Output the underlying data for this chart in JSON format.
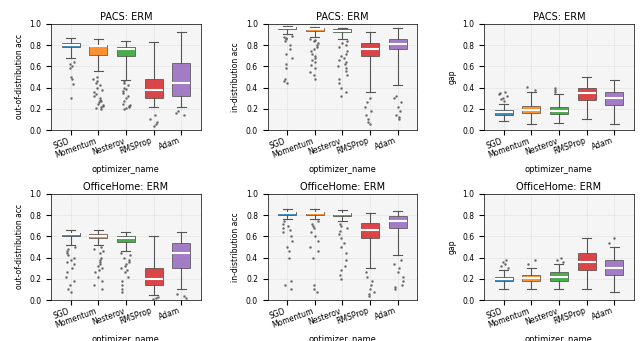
{
  "optimizers": [
    "SGD",
    "Momentum",
    "Nesterov",
    "RMSProp",
    "Adam"
  ],
  "colors": [
    "#1f77b4",
    "#ff7f0e",
    "#2ca02c",
    "#d62728",
    "#9467bd"
  ],
  "titles": {
    "row0": [
      "PACS: ERM",
      "PACS: ERM",
      "PACS: ERM"
    ],
    "row1": [
      "OfficeHome: ERM",
      "OfficeHome: ERM",
      "OfficeHome: ERM"
    ]
  },
  "ylabels": {
    "row0": [
      "out-of-distribution acc",
      "in-distribution acc",
      "gap"
    ],
    "row1": [
      "out-of-distribution acc",
      "in-distribution acc",
      "gap"
    ]
  },
  "pacs_ood": {
    "SGD": {
      "whislo": 0.68,
      "q1": 0.78,
      "med": 0.8,
      "q3": 0.82,
      "whishi": 0.87,
      "fliers": [
        0.3,
        0.43,
        0.48,
        0.5,
        0.58,
        0.6,
        0.62,
        0.64
      ]
    },
    "Momentum": {
      "whislo": 0.56,
      "q1": 0.71,
      "med": 0.79,
      "q3": 0.8,
      "whishi": 0.86,
      "fliers": [
        0.2,
        0.21,
        0.22,
        0.23,
        0.24,
        0.25,
        0.26,
        0.27,
        0.28,
        0.3,
        0.32,
        0.34,
        0.36,
        0.38,
        0.4,
        0.42,
        0.44,
        0.46,
        0.48,
        0.5
      ]
    },
    "Nesterov": {
      "whislo": 0.47,
      "q1": 0.7,
      "med": 0.76,
      "q3": 0.78,
      "whishi": 0.84,
      "fliers": [
        0.2,
        0.21,
        0.22,
        0.23,
        0.24,
        0.25,
        0.27,
        0.3,
        0.32,
        0.35,
        0.37,
        0.39,
        0.4,
        0.42,
        0.44,
        0.46
      ]
    },
    "RMSProp": {
      "whislo": 0.22,
      "q1": 0.3,
      "med": 0.38,
      "q3": 0.48,
      "whishi": 0.83,
      "fliers": [
        0.04,
        0.06,
        0.08,
        0.1,
        0.14
      ]
    },
    "Adam": {
      "whislo": 0.22,
      "q1": 0.32,
      "med": 0.44,
      "q3": 0.63,
      "whishi": 0.92,
      "fliers": [
        0.14,
        0.16,
        0.18
      ]
    }
  },
  "pacs_ind": {
    "SGD": {
      "whislo": 0.9,
      "q1": 0.95,
      "med": 0.96,
      "q3": 0.97,
      "whishi": 0.98,
      "fliers": [
        0.44,
        0.46,
        0.48,
        0.58,
        0.62,
        0.68,
        0.72,
        0.76,
        0.8,
        0.84,
        0.86,
        0.87,
        0.88,
        0.89
      ]
    },
    "Momentum": {
      "whislo": 0.88,
      "q1": 0.93,
      "med": 0.95,
      "q3": 0.96,
      "whishi": 0.97,
      "fliers": [
        0.48,
        0.52,
        0.55,
        0.58,
        0.61,
        0.64,
        0.66,
        0.68,
        0.7,
        0.72,
        0.74,
        0.76,
        0.78,
        0.8,
        0.82,
        0.84,
        0.85,
        0.86
      ]
    },
    "Nesterov": {
      "whislo": 0.86,
      "q1": 0.92,
      "med": 0.93,
      "q3": 0.95,
      "whishi": 0.96,
      "fliers": [
        0.32,
        0.36,
        0.4,
        0.44,
        0.48,
        0.52,
        0.56,
        0.58,
        0.6,
        0.62,
        0.64,
        0.66,
        0.68,
        0.7,
        0.72,
        0.74,
        0.78,
        0.8,
        0.82,
        0.84
      ]
    },
    "RMSProp": {
      "whislo": 0.36,
      "q1": 0.7,
      "med": 0.76,
      "q3": 0.82,
      "whishi": 0.92,
      "fliers": [
        0.06,
        0.08,
        0.1,
        0.14,
        0.18,
        0.22,
        0.26,
        0.3
      ]
    },
    "Adam": {
      "whislo": 0.42,
      "q1": 0.76,
      "med": 0.81,
      "q3": 0.86,
      "whishi": 0.96,
      "fliers": [
        0.1,
        0.12,
        0.14,
        0.18,
        0.22,
        0.26,
        0.3,
        0.32
      ]
    }
  },
  "pacs_gap": {
    "SGD": {
      "whislo": 0.09,
      "q1": 0.14,
      "med": 0.17,
      "q3": 0.19,
      "whishi": 0.25,
      "fliers": [
        0.27,
        0.29,
        0.3,
        0.32,
        0.34,
        0.35,
        0.36
      ]
    },
    "Momentum": {
      "whislo": 0.06,
      "q1": 0.16,
      "med": 0.19,
      "q3": 0.23,
      "whishi": 0.36,
      "fliers": [
        0.38,
        0.41
      ]
    },
    "Nesterov": {
      "whislo": 0.07,
      "q1": 0.15,
      "med": 0.18,
      "q3": 0.22,
      "whishi": 0.34,
      "fliers": [
        0.36,
        0.38,
        0.4
      ]
    },
    "RMSProp": {
      "whislo": 0.1,
      "q1": 0.28,
      "med": 0.35,
      "q3": 0.4,
      "whishi": 0.5,
      "fliers": []
    },
    "Adam": {
      "whislo": 0.06,
      "q1": 0.24,
      "med": 0.3,
      "q3": 0.36,
      "whishi": 0.47,
      "fliers": []
    }
  },
  "oh_ood": {
    "SGD": {
      "whislo": 0.52,
      "q1": 0.6,
      "med": 0.62,
      "q3": 0.63,
      "whishi": 0.66,
      "fliers": [
        0.08,
        0.1,
        0.14,
        0.18,
        0.22,
        0.26,
        0.3,
        0.34,
        0.36,
        0.38,
        0.4,
        0.42,
        0.44,
        0.46,
        0.48,
        0.5
      ]
    },
    "Momentum": {
      "whislo": 0.52,
      "q1": 0.58,
      "med": 0.6,
      "q3": 0.62,
      "whishi": 0.66,
      "fliers": [
        0.1,
        0.14,
        0.18,
        0.22,
        0.26,
        0.28,
        0.3,
        0.32,
        0.34,
        0.36,
        0.38,
        0.4,
        0.44,
        0.46,
        0.48,
        0.5
      ]
    },
    "Nesterov": {
      "whislo": 0.46,
      "q1": 0.55,
      "med": 0.58,
      "q3": 0.6,
      "whishi": 0.64,
      "fliers": [
        0.08,
        0.1,
        0.14,
        0.18,
        0.22,
        0.26,
        0.28,
        0.3,
        0.32,
        0.34,
        0.36,
        0.38,
        0.4,
        0.42,
        0.44
      ]
    },
    "RMSProp": {
      "whislo": 0.05,
      "q1": 0.14,
      "med": 0.2,
      "q3": 0.3,
      "whishi": 0.6,
      "fliers": [
        0.01,
        0.02,
        0.03
      ]
    },
    "Adam": {
      "whislo": 0.1,
      "q1": 0.3,
      "med": 0.44,
      "q3": 0.54,
      "whishi": 0.64,
      "fliers": [
        0.02,
        0.04,
        0.06
      ]
    }
  },
  "oh_ind": {
    "SGD": {
      "whislo": 0.76,
      "q1": 0.8,
      "med": 0.82,
      "q3": 0.83,
      "whishi": 0.86,
      "fliers": [
        0.1,
        0.14,
        0.18,
        0.4,
        0.46,
        0.5,
        0.56,
        0.6,
        0.64,
        0.66,
        0.68,
        0.7,
        0.72,
        0.74
      ]
    },
    "Momentum": {
      "whislo": 0.76,
      "q1": 0.8,
      "med": 0.82,
      "q3": 0.83,
      "whishi": 0.86,
      "fliers": [
        0.08,
        0.1,
        0.14,
        0.4,
        0.46,
        0.5,
        0.56,
        0.6,
        0.64,
        0.68,
        0.7,
        0.72,
        0.74
      ]
    },
    "Nesterov": {
      "whislo": 0.74,
      "q1": 0.79,
      "med": 0.81,
      "q3": 0.82,
      "whishi": 0.85,
      "fliers": [
        0.2,
        0.24,
        0.28,
        0.32,
        0.38,
        0.44,
        0.5,
        0.54,
        0.58,
        0.62,
        0.65,
        0.68,
        0.7,
        0.72
      ]
    },
    "RMSProp": {
      "whislo": 0.3,
      "q1": 0.58,
      "med": 0.66,
      "q3": 0.73,
      "whishi": 0.82,
      "fliers": [
        0.04,
        0.06,
        0.08,
        0.1,
        0.14,
        0.18,
        0.22,
        0.26
      ]
    },
    "Adam": {
      "whislo": 0.42,
      "q1": 0.68,
      "med": 0.74,
      "q3": 0.79,
      "whishi": 0.84,
      "fliers": [
        0.1,
        0.12,
        0.14,
        0.18,
        0.22,
        0.26,
        0.3,
        0.34,
        0.38
      ]
    }
  },
  "oh_gap": {
    "SGD": {
      "whislo": 0.1,
      "q1": 0.18,
      "med": 0.2,
      "q3": 0.22,
      "whishi": 0.28,
      "fliers": [
        0.3,
        0.32,
        0.34,
        0.36,
        0.38
      ]
    },
    "Momentum": {
      "whislo": 0.1,
      "q1": 0.18,
      "med": 0.21,
      "q3": 0.24,
      "whishi": 0.3,
      "fliers": [
        0.34,
        0.38
      ]
    },
    "Nesterov": {
      "whislo": 0.1,
      "q1": 0.18,
      "med": 0.22,
      "q3": 0.26,
      "whishi": 0.34,
      "fliers": [
        0.36,
        0.38,
        0.4
      ]
    },
    "RMSProp": {
      "whislo": 0.1,
      "q1": 0.28,
      "med": 0.36,
      "q3": 0.44,
      "whishi": 0.58,
      "fliers": []
    },
    "Adam": {
      "whislo": 0.08,
      "q1": 0.24,
      "med": 0.3,
      "q3": 0.38,
      "whishi": 0.5,
      "fliers": [
        0.54,
        0.58
      ]
    }
  },
  "xlabel": "optimizer_name",
  "figsize": [
    6.4,
    3.41
  ],
  "dpi": 100
}
